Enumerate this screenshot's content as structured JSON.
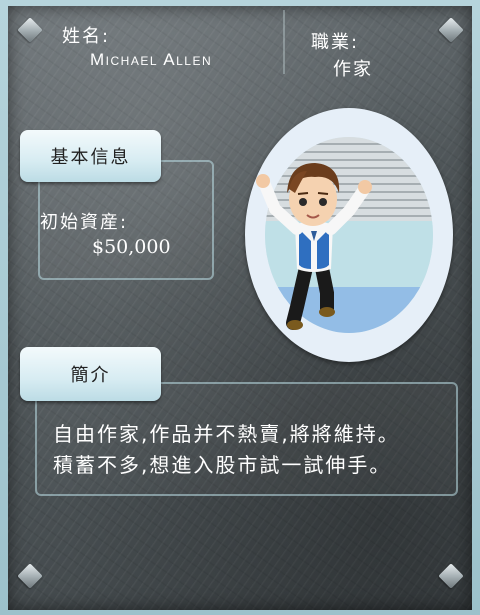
{
  "header": {
    "name_label": "姓名:",
    "name_value": "Michael Allen",
    "job_label": "職業:",
    "job_value": "作家"
  },
  "basic_info": {
    "tab_label": "基本信息",
    "assets_label": "初始資産:",
    "assets_value": "$50,000"
  },
  "intro": {
    "tab_label": "簡介",
    "line1": "自由作家,作品并不熱賣,將將維持。",
    "line2": "積蓄不多,想進入股市試一試伸手。"
  },
  "colors": {
    "board": "#4f5659",
    "tab": "#d7ecf2",
    "panel_border": "#b9dce4",
    "text": "#ffffff"
  },
  "icons": {
    "corner": "corner-stud-icon"
  }
}
